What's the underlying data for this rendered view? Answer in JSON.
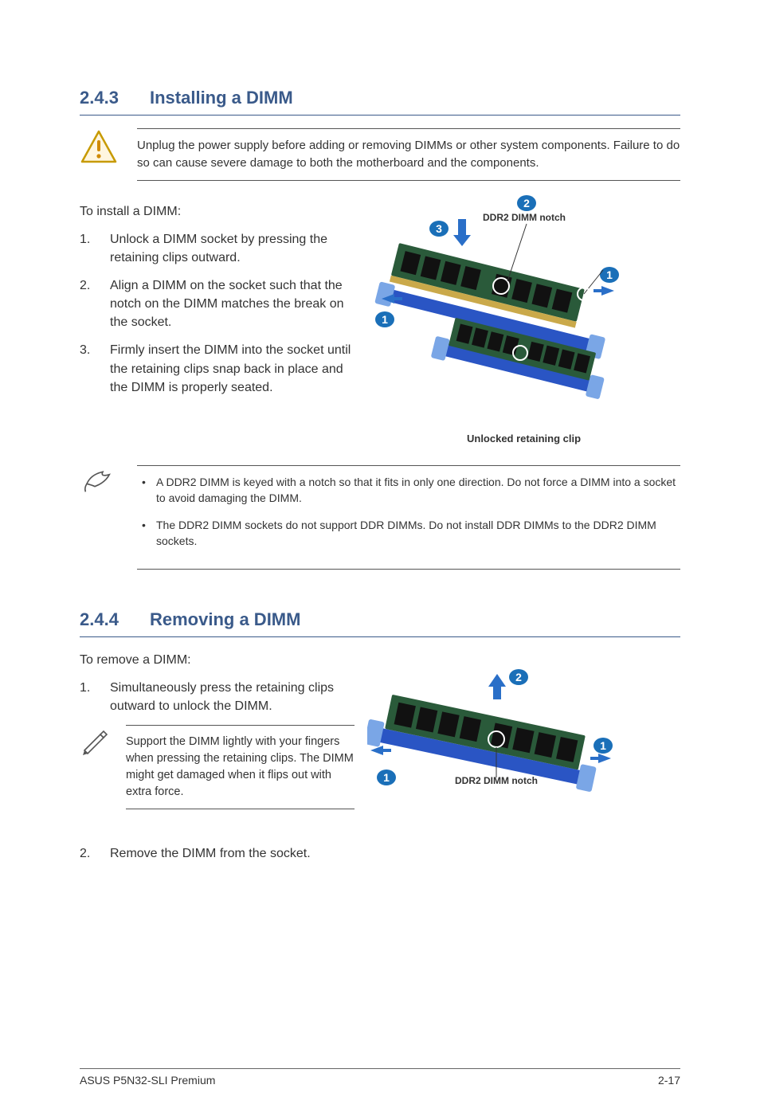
{
  "colors": {
    "heading": "#3a5a8a",
    "text": "#333333",
    "rule": "#555555",
    "badge_fill": "#1a6fb8",
    "badge_text": "#ffffff",
    "warn_fill": "#fff6e0",
    "warn_stroke": "#c79a00",
    "warn_mark": "#d08a00",
    "dimm_board": "#2a5a3a",
    "dimm_socket": "#2a55c4",
    "dimm_clip": "#7aa6e6",
    "arrow_blue": "#2a6fc8"
  },
  "typography": {
    "heading_fontsize": 22,
    "body_fontsize": 16,
    "callout_fontsize": 15,
    "small_fontsize": 14,
    "label_fontsize": 12
  },
  "section1": {
    "number": "2.4.3",
    "title": "Installing a DIMM",
    "warning": "Unplug the power supply before adding or removing DIMMs or other system components. Failure to do so can cause severe damage to both the motherboard and the components.",
    "lead": "To install a DIMM:",
    "steps": [
      "Unlock a DIMM socket by pressing the retaining clips outward.",
      "Align a DIMM on the socket such that the notch on the DIMM matches the break on the socket.",
      "Firmly insert the DIMM into the socket until the retaining clips snap back in place and the DIMM is properly seated."
    ],
    "diagram": {
      "label_notch": "DDR2 DIMM notch",
      "label_clip": "Unlocked retaining clip",
      "badges": [
        "1",
        "2",
        "3",
        "1"
      ]
    },
    "notes": [
      "A DDR2 DIMM is keyed with a notch so that it fits in only one direction. Do not force a DIMM into a socket to avoid damaging the DIMM.",
      "The DDR2 DIMM sockets do not support DDR DIMMs. Do not install DDR DIMMs to the DDR2 DIMM sockets."
    ]
  },
  "section2": {
    "number": "2.4.4",
    "title": "Removing a DIMM",
    "lead": "To remove a DIMM:",
    "step1": "Simultaneously press the retaining clips outward to unlock the DIMM.",
    "tip": "Support the DIMM lightly with your fingers when pressing the retaining clips. The DIMM might get damaged when it flips out with extra force.",
    "step2": "Remove the DIMM from the socket.",
    "diagram": {
      "label_notch": "DDR2 DIMM notch",
      "badges": [
        "1",
        "2",
        "1"
      ]
    }
  },
  "footer": {
    "left": "ASUS P5N32-SLI Premium",
    "right": "2-17"
  }
}
